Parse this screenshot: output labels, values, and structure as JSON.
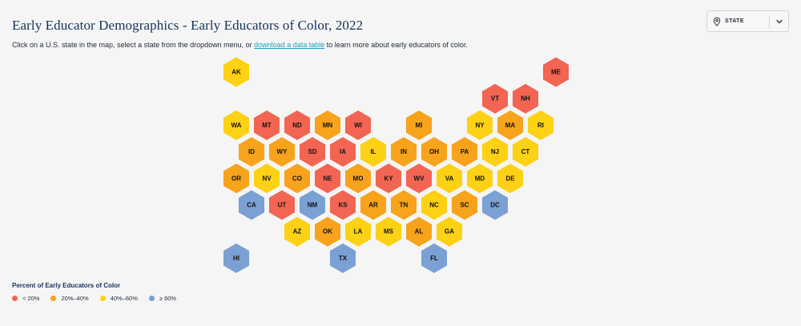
{
  "header": {
    "title": "Early Educator Demographics - Early Educators of Color, 2022",
    "intro_before": "Click on a U.S. state in the map, select a state from the dropdown menu, or ",
    "intro_link": "download a data table",
    "intro_after": " to learn more about early educators of color."
  },
  "state_select": {
    "label": "STATE",
    "pin_icon": "map-pin-icon",
    "chevron_icon": "chevron-down-icon"
  },
  "legend": {
    "title": "Percent of Early Educators of Color",
    "items": [
      {
        "key": "lt20",
        "label": "< 20%",
        "color": "#f26552"
      },
      {
        "key": "20_40",
        "label": "20%–40%",
        "color": "#f7a31c"
      },
      {
        "key": "40_60",
        "label": "40%–60%",
        "color": "#fdd114"
      },
      {
        "key": "gte60",
        "label": "≥ 60%",
        "color": "#7aa0d4"
      }
    ]
  },
  "map_data": {
    "states": [
      {
        "abbr": "AK",
        "row": 0,
        "col": 0,
        "category": "40_60"
      },
      {
        "abbr": "ME",
        "row": 0,
        "col": 10.5,
        "category": "lt20"
      },
      {
        "abbr": "VT",
        "row": 1,
        "col": 8.5,
        "category": "lt20"
      },
      {
        "abbr": "NH",
        "row": 1,
        "col": 9.5,
        "category": "lt20"
      },
      {
        "abbr": "WA",
        "row": 2,
        "col": 0,
        "category": "40_60"
      },
      {
        "abbr": "MT",
        "row": 2,
        "col": 1,
        "category": "lt20"
      },
      {
        "abbr": "ND",
        "row": 2,
        "col": 2,
        "category": "lt20"
      },
      {
        "abbr": "MN",
        "row": 2,
        "col": 3,
        "category": "20_40"
      },
      {
        "abbr": "WI",
        "row": 2,
        "col": 4,
        "category": "lt20"
      },
      {
        "abbr": "MI",
        "row": 2,
        "col": 6,
        "category": "20_40"
      },
      {
        "abbr": "NY",
        "row": 2,
        "col": 8,
        "category": "40_60"
      },
      {
        "abbr": "MA",
        "row": 2,
        "col": 9,
        "category": "20_40"
      },
      {
        "abbr": "RI",
        "row": 2,
        "col": 10,
        "category": "40_60"
      },
      {
        "abbr": "ID",
        "row": 3,
        "col": 0.5,
        "category": "20_40"
      },
      {
        "abbr": "WY",
        "row": 3,
        "col": 1.5,
        "category": "20_40"
      },
      {
        "abbr": "SD",
        "row": 3,
        "col": 2.5,
        "category": "lt20"
      },
      {
        "abbr": "IA",
        "row": 3,
        "col": 3.5,
        "category": "lt20"
      },
      {
        "abbr": "IL",
        "row": 3,
        "col": 4.5,
        "category": "40_60"
      },
      {
        "abbr": "IN",
        "row": 3,
        "col": 5.5,
        "category": "20_40"
      },
      {
        "abbr": "OH",
        "row": 3,
        "col": 6.5,
        "category": "20_40"
      },
      {
        "abbr": "PA",
        "row": 3,
        "col": 7.5,
        "category": "20_40"
      },
      {
        "abbr": "NJ",
        "row": 3,
        "col": 8.5,
        "category": "40_60"
      },
      {
        "abbr": "CT",
        "row": 3,
        "col": 9.5,
        "category": "40_60"
      },
      {
        "abbr": "OR",
        "row": 4,
        "col": 0,
        "category": "20_40"
      },
      {
        "abbr": "NV",
        "row": 4,
        "col": 1,
        "category": "40_60"
      },
      {
        "abbr": "CO",
        "row": 4,
        "col": 2,
        "category": "20_40"
      },
      {
        "abbr": "NE",
        "row": 4,
        "col": 3,
        "category": "lt20"
      },
      {
        "abbr": "MO",
        "row": 4,
        "col": 4,
        "category": "20_40"
      },
      {
        "abbr": "KY",
        "row": 4,
        "col": 5,
        "category": "lt20"
      },
      {
        "abbr": "WV",
        "row": 4,
        "col": 6,
        "category": "lt20"
      },
      {
        "abbr": "VA",
        "row": 4,
        "col": 7,
        "category": "40_60"
      },
      {
        "abbr": "MD",
        "row": 4,
        "col": 8,
        "category": "40_60"
      },
      {
        "abbr": "DE",
        "row": 4,
        "col": 9,
        "category": "40_60"
      },
      {
        "abbr": "CA",
        "row": 5,
        "col": 0.5,
        "category": "gte60"
      },
      {
        "abbr": "UT",
        "row": 5,
        "col": 1.5,
        "category": "lt20"
      },
      {
        "abbr": "NM",
        "row": 5,
        "col": 2.5,
        "category": "gte60"
      },
      {
        "abbr": "KS",
        "row": 5,
        "col": 3.5,
        "category": "lt20"
      },
      {
        "abbr": "AR",
        "row": 5,
        "col": 4.5,
        "category": "20_40"
      },
      {
        "abbr": "TN",
        "row": 5,
        "col": 5.5,
        "category": "20_40"
      },
      {
        "abbr": "NC",
        "row": 5,
        "col": 6.5,
        "category": "40_60"
      },
      {
        "abbr": "SC",
        "row": 5,
        "col": 7.5,
        "category": "20_40"
      },
      {
        "abbr": "DC",
        "row": 5,
        "col": 8.5,
        "category": "gte60"
      },
      {
        "abbr": "AZ",
        "row": 6,
        "col": 2,
        "category": "40_60"
      },
      {
        "abbr": "OK",
        "row": 6,
        "col": 3,
        "category": "20_40"
      },
      {
        "abbr": "LA",
        "row": 6,
        "col": 4,
        "category": "40_60"
      },
      {
        "abbr": "MS",
        "row": 6,
        "col": 5,
        "category": "40_60"
      },
      {
        "abbr": "AL",
        "row": 6,
        "col": 6,
        "category": "20_40"
      },
      {
        "abbr": "GA",
        "row": 6,
        "col": 7,
        "category": "40_60"
      },
      {
        "abbr": "HI",
        "row": 7,
        "col": 0,
        "category": "gte60"
      },
      {
        "abbr": "TX",
        "row": 7,
        "col": 3.5,
        "category": "gte60"
      },
      {
        "abbr": "FL",
        "row": 7,
        "col": 6.5,
        "category": "gte60"
      }
    ]
  }
}
